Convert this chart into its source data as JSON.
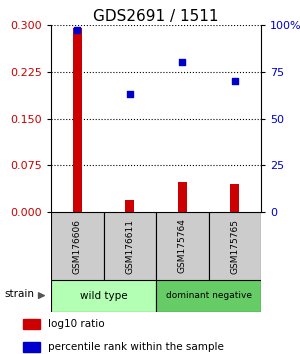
{
  "title": "GDS2691 / 1511",
  "samples": [
    "GSM176606",
    "GSM176611",
    "GSM175764",
    "GSM175765"
  ],
  "log10_ratio": [
    0.295,
    0.02,
    0.048,
    0.045
  ],
  "percentile_rank": [
    97,
    63,
    80,
    70
  ],
  "left_ylim": [
    0,
    0.3
  ],
  "right_ylim": [
    0,
    100
  ],
  "left_yticks": [
    0,
    0.075,
    0.15,
    0.225,
    0.3
  ],
  "right_yticks": [
    0,
    25,
    50,
    75,
    100
  ],
  "right_yticklabels": [
    "0",
    "25",
    "50",
    "75",
    "100%"
  ],
  "bar_color": "#cc0000",
  "scatter_color": "#0000cc",
  "groups": [
    {
      "label": "wild type",
      "samples": [
        0,
        1
      ],
      "color": "#b3ffb3"
    },
    {
      "label": "dominant negative",
      "samples": [
        2,
        3
      ],
      "color": "#66cc66"
    }
  ],
  "strain_label": "strain",
  "legend_bar_label": "log10 ratio",
  "legend_scatter_label": "percentile rank within the sample",
  "bar_width": 0.18,
  "sample_box_color": "#cccccc",
  "title_fontsize": 11,
  "tick_fontsize": 8,
  "label_fontsize": 7.5,
  "legend_fontsize": 7.5
}
